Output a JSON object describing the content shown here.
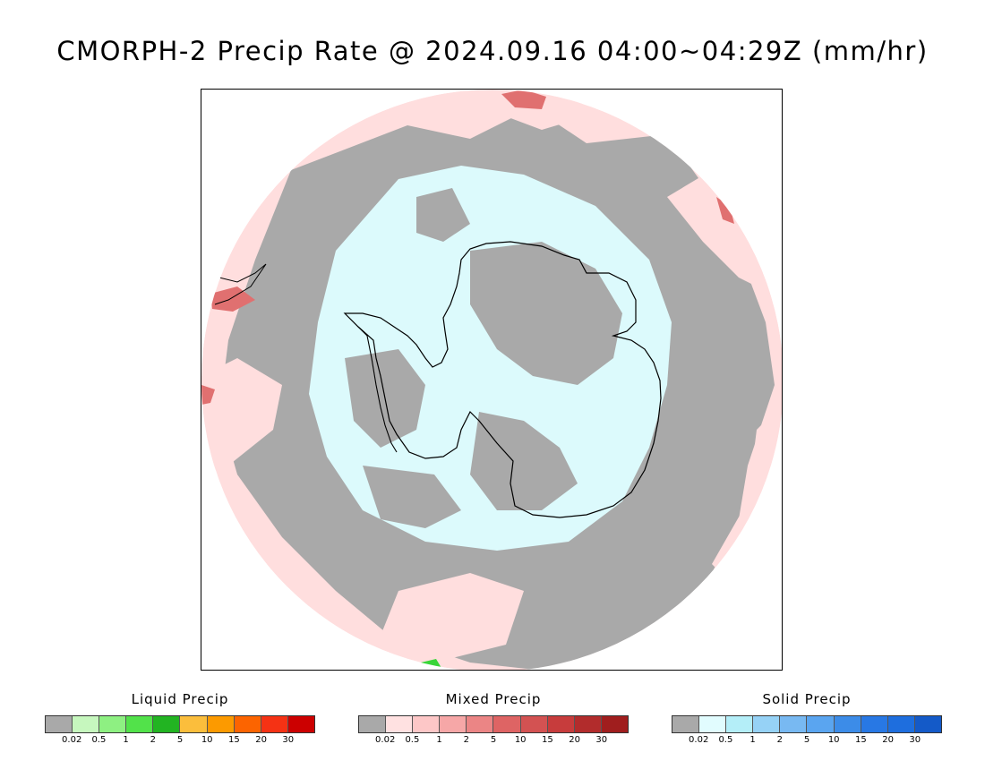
{
  "title": "CMORPH-2 Precip Rate @ 2024.09.16 04:00~04:29Z (mm/hr)",
  "map": {
    "projection": "south-polar-stereographic",
    "colors": {
      "no_precip": "#a9a9a9",
      "light_mixed": "#ffdede",
      "light_solid": "#dcfafc",
      "coastline": "#000000",
      "heavy_mixed": "#e07070",
      "liquid": "#39d539"
    }
  },
  "legends": [
    {
      "title": "Liquid Precip",
      "colors": [
        "#a9a9a9",
        "#c6f7be",
        "#8ef082",
        "#52e24a",
        "#22b422",
        "#fbbe3c",
        "#fc9a00",
        "#fc6400",
        "#f53214",
        "#cc0000"
      ],
      "ticks": [
        "0.02",
        "0.5",
        "1",
        "2",
        "5",
        "10",
        "15",
        "20",
        "30"
      ]
    },
    {
      "title": "Mixed Precip",
      "colors": [
        "#a9a9a9",
        "#ffe1e1",
        "#fdc7c7",
        "#f6a7a7",
        "#eb8585",
        "#de6464",
        "#d35252",
        "#c73c3c",
        "#b22c2c",
        "#a01e1e"
      ],
      "ticks": [
        "0.02",
        "0.5",
        "1",
        "2",
        "5",
        "10",
        "15",
        "20",
        "30"
      ]
    },
    {
      "title": "Solid Precip",
      "colors": [
        "#a9a9a9",
        "#e1fcfe",
        "#b4eef8",
        "#96d2f6",
        "#78b9f2",
        "#5aa5f0",
        "#3c8ce8",
        "#2878e4",
        "#1e6ede",
        "#145ac8"
      ],
      "ticks": [
        "0.02",
        "0.5",
        "1",
        "2",
        "5",
        "10",
        "15",
        "20",
        "30"
      ]
    }
  ]
}
